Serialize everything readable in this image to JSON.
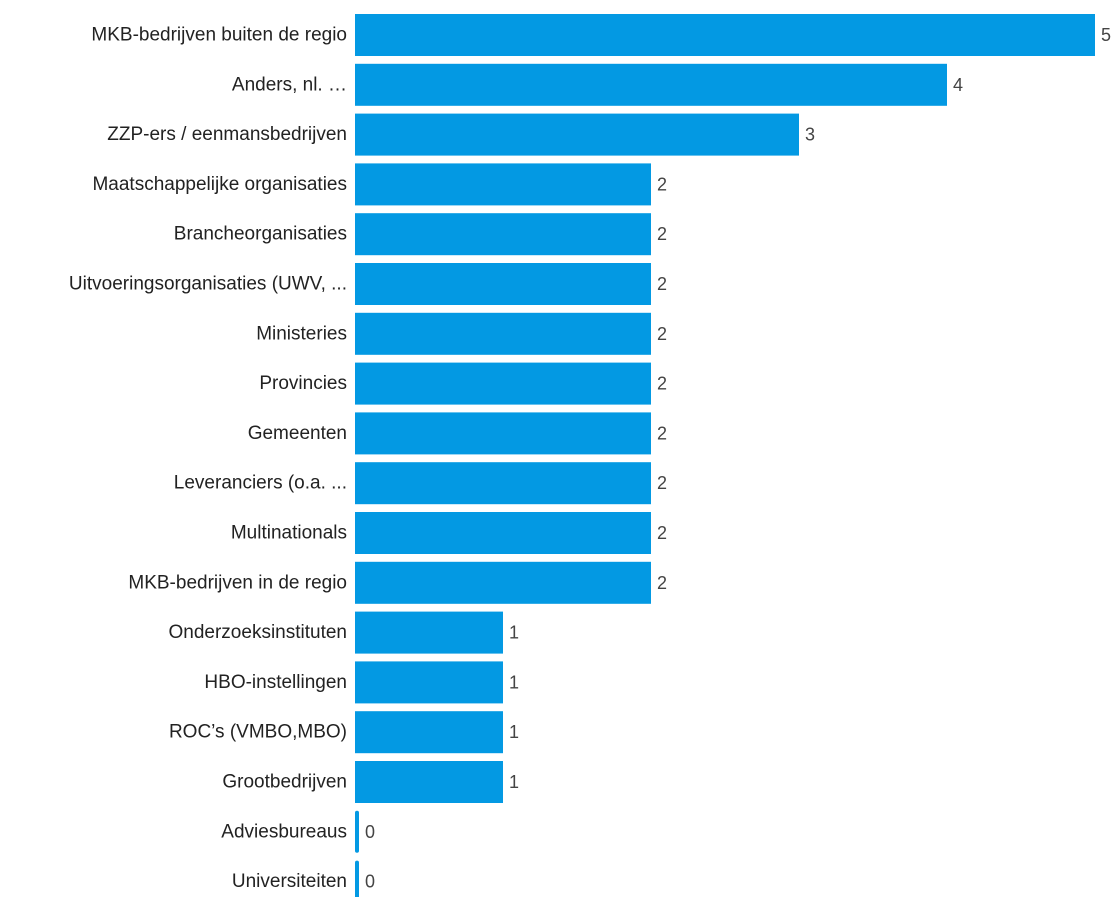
{
  "chart_data": {
    "type": "bar",
    "orientation": "horizontal",
    "categories": [
      "MKB-bedrijven buiten de regio",
      "Anders, nl. …",
      "ZZP-ers / eenmansbedrijven",
      "Maatschappelijke organisaties",
      "Brancheorganisaties",
      "Uitvoeringsorganisaties (UWV, ...",
      "Ministeries",
      "Provincies",
      "Gemeenten",
      "Leveranciers (o.a. ...",
      "Multinationals",
      "MKB-bedrijven in de regio",
      "Onderzoeksinstituten",
      "HBO-instellingen",
      "ROC’s (VMBO,MBO)",
      "Grootbedrijven",
      "Adviesbureaus",
      "Universiteiten"
    ],
    "values": [
      5,
      4,
      3,
      2,
      2,
      2,
      2,
      2,
      2,
      2,
      2,
      2,
      1,
      1,
      1,
      1,
      0,
      0
    ],
    "xlim": [
      0,
      5
    ],
    "grid": false,
    "legend": "none",
    "colors": {
      "bar": "#0399e3",
      "value_text": "#444444",
      "label_text": "#222222"
    }
  }
}
